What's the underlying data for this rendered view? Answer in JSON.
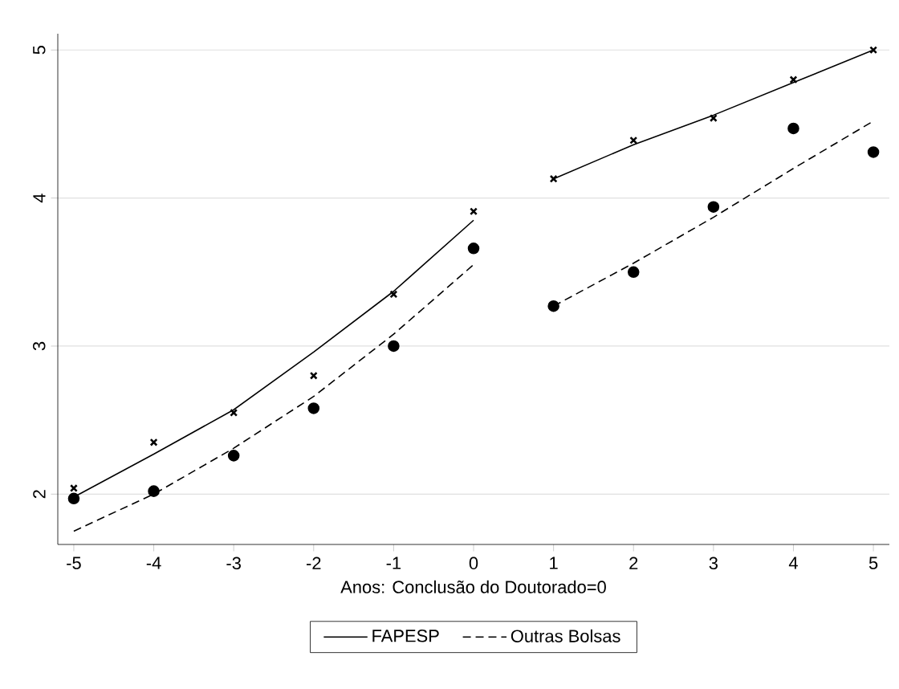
{
  "chart_data": {
    "type": "line",
    "xlabel": "Anos: Conclusão do Doutorado=0",
    "xlim": [
      -5.2,
      5.2
    ],
    "xticks": [
      -5,
      -4,
      -3,
      -2,
      -1,
      0,
      1,
      2,
      3,
      4,
      5
    ],
    "ylim": [
      1.66,
      5.11
    ],
    "yticks": [
      2,
      3,
      4,
      5
    ],
    "grid": "y",
    "legend": "bottom",
    "series": [
      {
        "name": "FAPESP",
        "line_style": "solid",
        "marker": "none",
        "color": "#000000",
        "x": [
          -5,
          -4,
          -3,
          -2,
          -1,
          0
        ],
        "values": [
          1.98,
          2.27,
          2.57,
          2.96,
          3.37,
          3.85
        ]
      },
      {
        "name": "Outras Bolsas",
        "line_style": "dashed",
        "marker": "none",
        "color": "#000000",
        "x": [
          -5,
          -4,
          -3,
          -2,
          -1,
          0
        ],
        "values": [
          1.75,
          2.0,
          2.31,
          2.66,
          3.08,
          3.55
        ]
      },
      {
        "line_style": "solid",
        "marker": "none",
        "color": "#000000",
        "x": [
          1,
          2,
          3,
          4,
          5
        ],
        "values": [
          4.13,
          4.36,
          4.56,
          4.78,
          5.0
        ]
      },
      {
        "line_style": "dashed",
        "marker": "none",
        "color": "#000000",
        "x": [
          1,
          2,
          3,
          4,
          5
        ],
        "values": [
          3.27,
          3.56,
          3.87,
          4.2,
          4.52
        ]
      },
      {
        "type": "scatter",
        "marker": "cross",
        "color": "#000000",
        "x": [
          -5,
          -4,
          -3,
          -2,
          -1,
          0,
          1,
          2,
          3,
          4,
          5
        ],
        "values": [
          2.04,
          2.35,
          2.55,
          2.8,
          3.35,
          3.91,
          4.13,
          4.39,
          4.54,
          4.8,
          5.0
        ]
      },
      {
        "type": "scatter",
        "marker": "circle",
        "color": "#000000",
        "x": [
          -5,
          -4,
          -3,
          -2,
          -1,
          0,
          1,
          2,
          3,
          4,
          5
        ],
        "values": [
          1.97,
          2.02,
          2.26,
          2.58,
          3.0,
          3.66,
          3.27,
          3.5,
          3.94,
          4.47,
          4.31
        ]
      }
    ]
  }
}
